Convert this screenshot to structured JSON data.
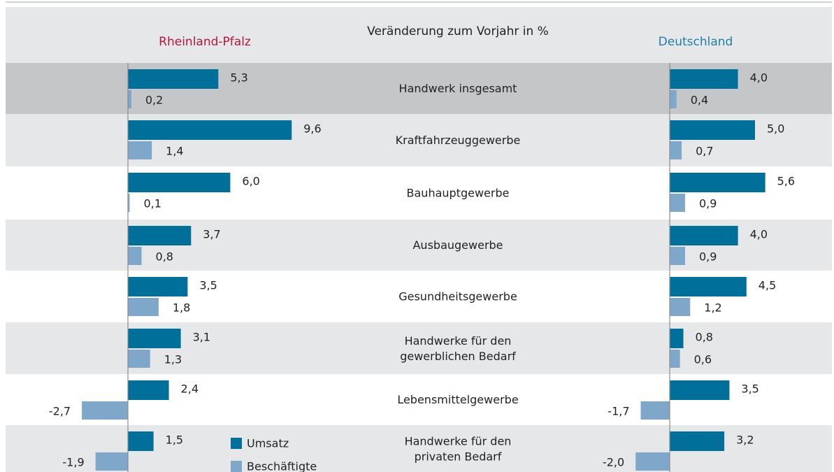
{
  "chart_data": {
    "type": "bar",
    "orientation": "horizontal",
    "title": "Veränderung zum Vorjahr in %",
    "categories": [
      "Handwerk insgesamt",
      "Kraftfahrzeuggewerbe",
      "Bauhauptgewerbe",
      "Ausbaugewerbe",
      "Gesundheitsgewerbe",
      "Handwerke für den\ngewerblichen Bedarf",
      "Lebensmittelgewerbe",
      "Handwerke für den\nprivaten Bedarf"
    ],
    "panels": [
      {
        "title": "Rheinland-Pfalz",
        "title_color": "#b5173b",
        "series": [
          {
            "name": "Umsatz",
            "color": "#006f9a",
            "values": [
              5.3,
              9.6,
              6.0,
              3.7,
              3.5,
              3.1,
              2.4,
              1.5
            ],
            "value_labels": [
              "5,3",
              "9,6",
              "6,0",
              "3,7",
              "3,5",
              "3,1",
              "2,4",
              "1,5"
            ]
          },
          {
            "name": "Beschäftigte",
            "color": "#7fa7c9",
            "values": [
              0.2,
              1.4,
              0.1,
              0.8,
              1.8,
              1.3,
              -2.7,
              -1.9
            ],
            "value_labels": [
              "0,2",
              "1,4",
              "0,1",
              "0,8",
              "1,8",
              "1,3",
              "-2,7",
              "-1,9"
            ]
          }
        ]
      },
      {
        "title": "Deutschland",
        "title_color": "#1f7ea8",
        "series": [
          {
            "color": "#006f9a",
            "values": [
              4.0,
              5.0,
              5.6,
              4.0,
              4.5,
              0.8,
              3.5,
              3.2
            ],
            "value_labels": [
              "4,0",
              "5,0",
              "5,6",
              "4,0",
              "4,5",
              "0,8",
              "3,5",
              "3,2"
            ]
          },
          {
            "color": "#7fa7c9",
            "values": [
              0.4,
              0.7,
              0.9,
              0.9,
              1.2,
              0.6,
              -1.7,
              -2.0
            ],
            "value_labels": [
              "0,4",
              "0,7",
              "0,9",
              "0,9",
              "1,2",
              "0,6",
              "-1,7",
              "-2,0"
            ]
          }
        ]
      }
    ]
  }
}
